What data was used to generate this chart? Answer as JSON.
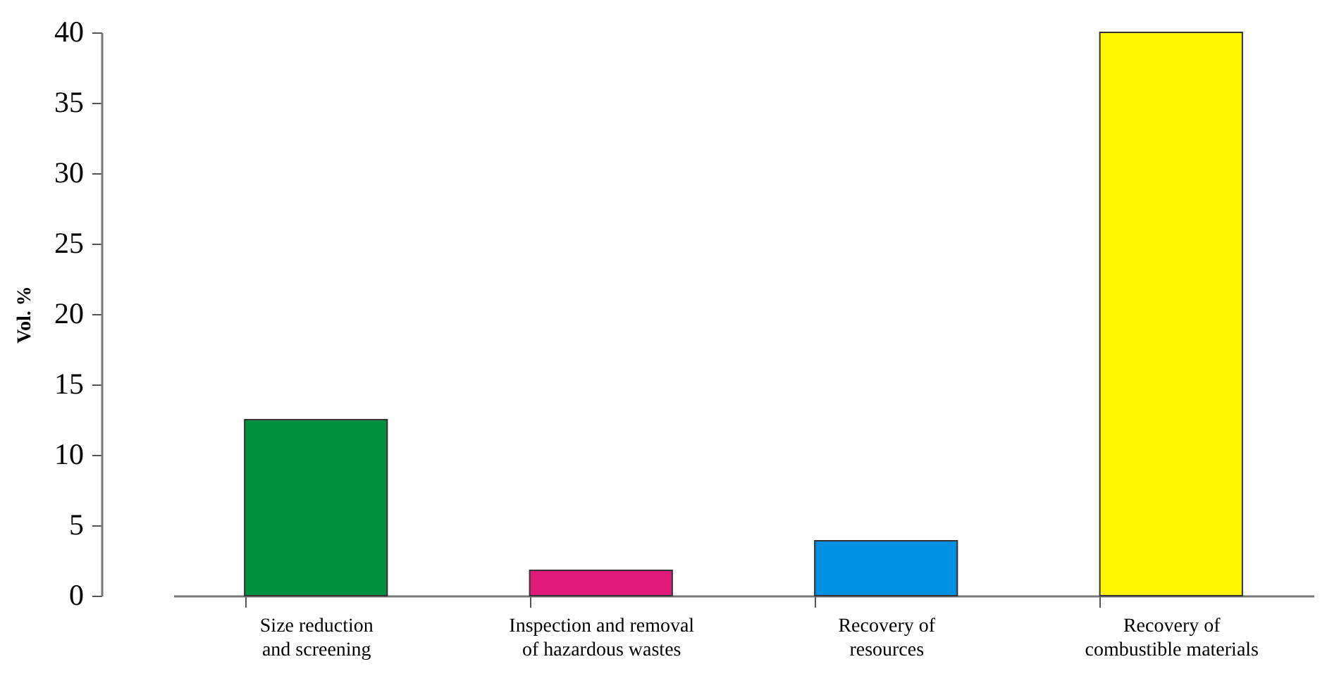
{
  "chart_data": {
    "type": "bar",
    "ylabel": "Vol. %",
    "categories": [
      "Size reduction and screening",
      "Inspection and removal of hazardous wastes",
      "Recovery of resources",
      "Recovery of combustible materials"
    ],
    "values": [
      12.5,
      1.8,
      3.9,
      40
    ],
    "colors": [
      "#009040",
      "#e0197a",
      "#0090e0",
      "#fff500"
    ],
    "ylim": [
      0,
      40
    ],
    "yticks": [
      0,
      5,
      10,
      15,
      20,
      25,
      30,
      35,
      40
    ],
    "grid": false,
    "legend": false
  }
}
